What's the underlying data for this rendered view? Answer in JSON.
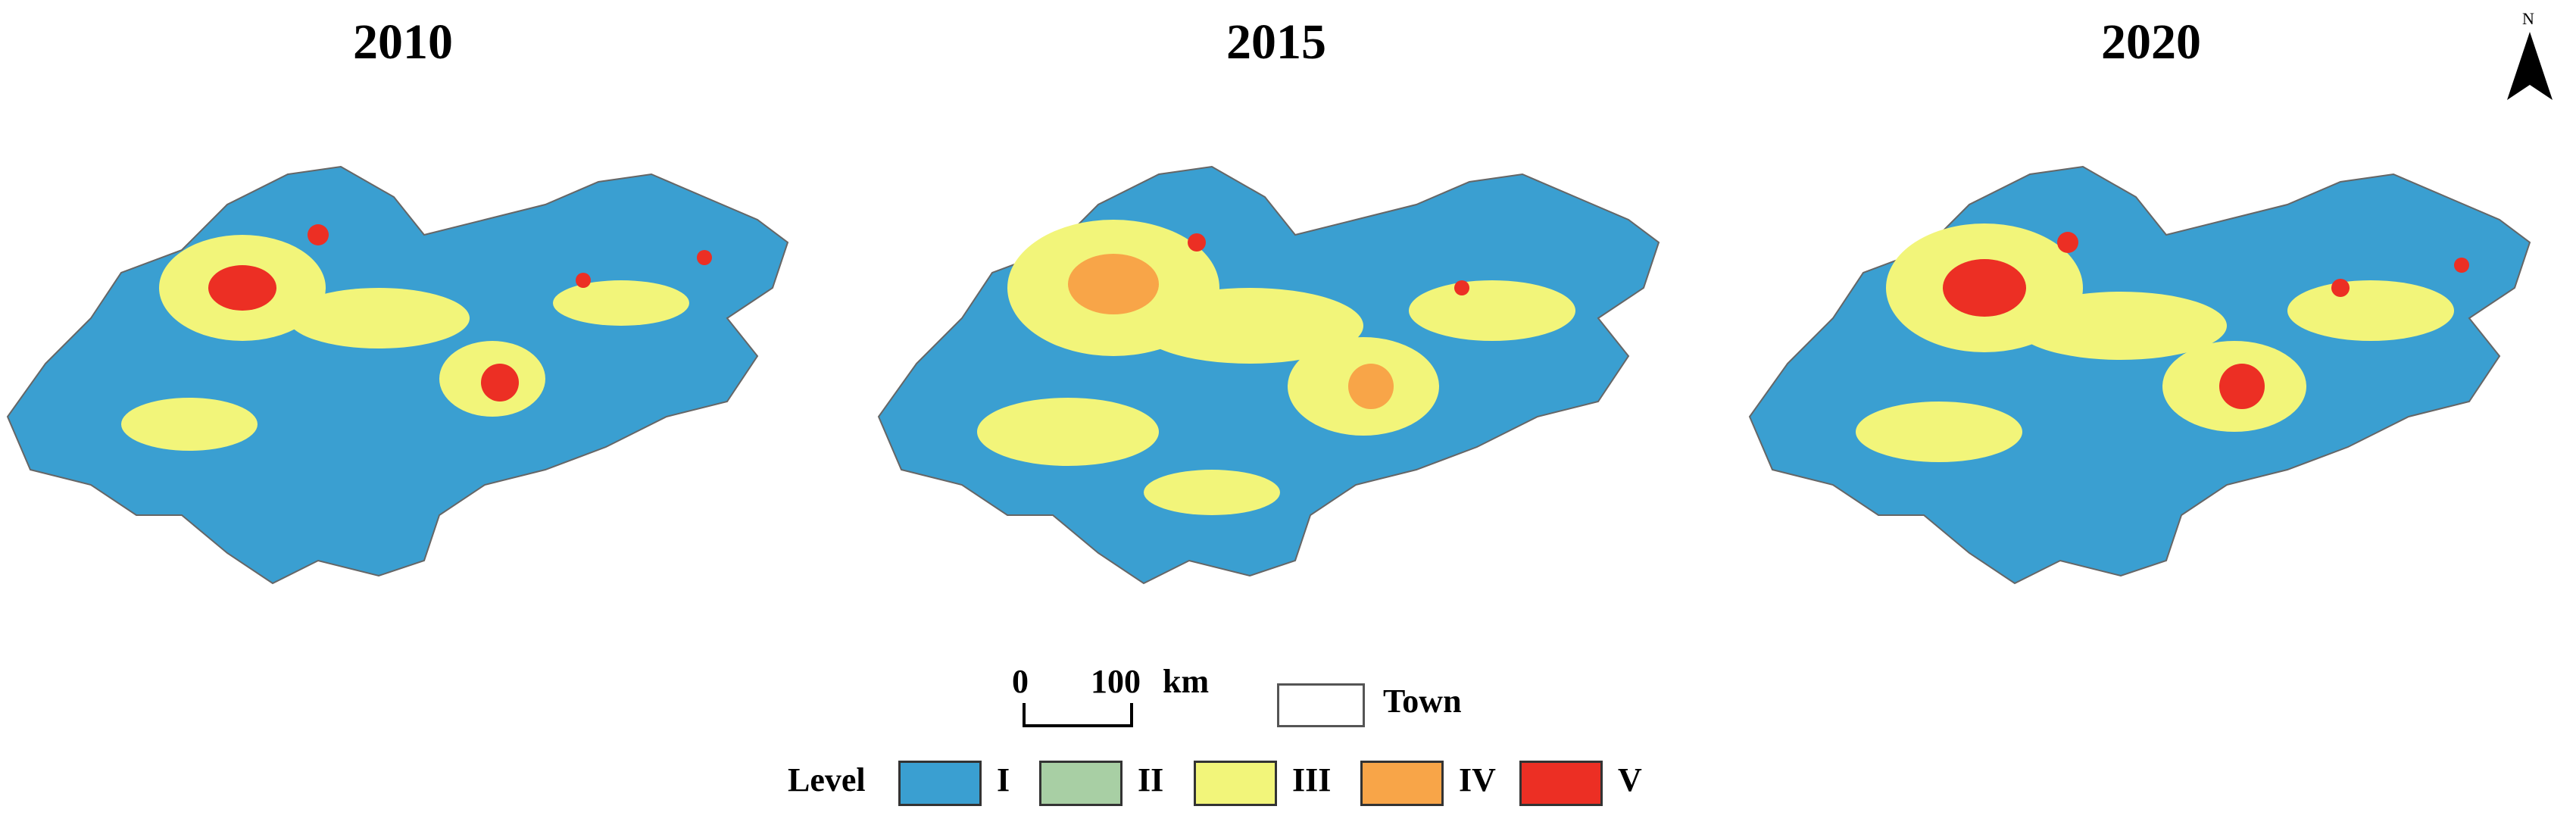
{
  "panels": [
    {
      "year": "2010"
    },
    {
      "year": "2015"
    },
    {
      "year": "2020"
    }
  ],
  "north_arrow": {
    "label": "N",
    "icon": "north-arrow-icon"
  },
  "scale_bar": {
    "start": "0",
    "end": "100",
    "unit": "km"
  },
  "town_legend": {
    "label": "Town"
  },
  "level_legend": {
    "title": "Level",
    "items": [
      {
        "label": "I",
        "color": "#3a9fd1"
      },
      {
        "label": "II",
        "color": "#a8cfa4"
      },
      {
        "label": "III",
        "color": "#f2f57a"
      },
      {
        "label": "IV",
        "color": "#f8a548"
      },
      {
        "label": "V",
        "color": "#ec2f24"
      }
    ]
  }
}
